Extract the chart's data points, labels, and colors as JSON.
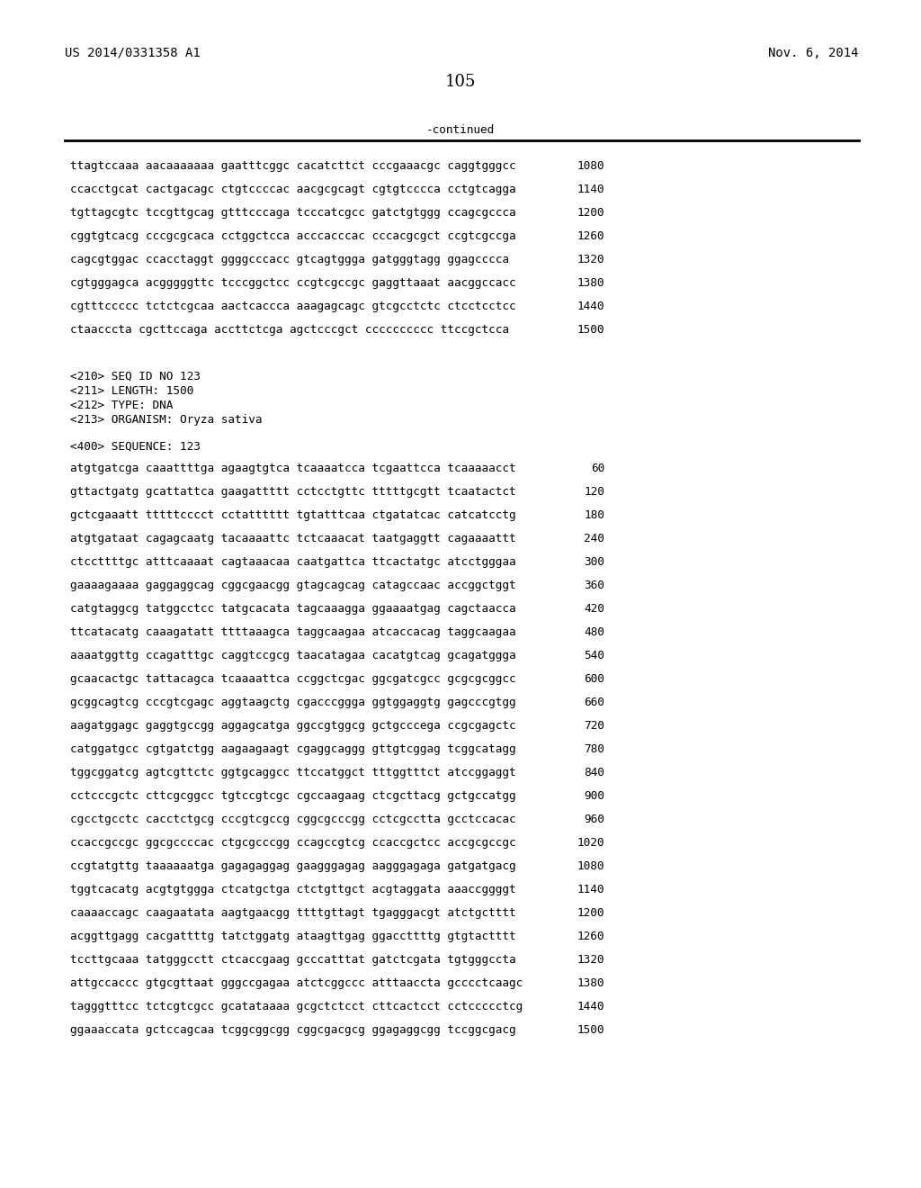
{
  "header_left": "US 2014/0331358 A1",
  "header_right": "Nov. 6, 2014",
  "page_number": "105",
  "continued_text": "-continued",
  "background_color": "#ffffff",
  "text_color": "#000000",
  "font_size_header": 10.0,
  "font_size_body": 9.2,
  "font_size_page": 13,
  "sequence_lines_top": [
    [
      "ttagtccaaa aacaaaaaaa gaatttcggc cacatcttct cccgaaacgc caggtgggcc",
      "1080"
    ],
    [
      "ccacctgcat cactgacagc ctgtccccac aacgcgcagt cgtgtcccca cctgtcagga",
      "1140"
    ],
    [
      "tgttagcgtc tccgttgcag gtttcccaga tcccatcgcc gatctgtggg ccagcgccca",
      "1200"
    ],
    [
      "cggtgtcacg cccgcgcaca cctggctcca acccacccac cccacgcgct ccgtcgccga",
      "1260"
    ],
    [
      "cagcgtggac ccacctaggt ggggcccacc gtcagtggga gatgggtagg ggagcccca",
      "1320"
    ],
    [
      "cgtgggagca acgggggttc tcccggctcc ccgtcgccgc gaggttaaat aacggccacc",
      "1380"
    ],
    [
      "cgtttccccc tctctcgcaa aactcaccca aaagagcagc gtcgcctctc ctcctcctcc",
      "1440"
    ],
    [
      "ctaacccta cgcttccaga accttctcga agctcccgct cccccccccc ttccgctcca",
      "1500"
    ]
  ],
  "metadata_lines": [
    "<210> SEQ ID NO 123",
    "<211> LENGTH: 1500",
    "<212> TYPE: DNA",
    "<213> ORGANISM: Oryza sativa"
  ],
  "sequence_label": "<400> SEQUENCE: 123",
  "sequence_lines_bottom": [
    [
      "atgtgatcga caaattttga agaagtgtca tcaaaatcca tcgaattcca tcaaaaacct",
      "60"
    ],
    [
      "gttactgatg gcattattca gaagattttt cctcctgttc tttttgcgtt tcaatactct",
      "120"
    ],
    [
      "gctcgaaatt tttttcccct cctatttttt tgtatttcaa ctgatatcac catcatcctg",
      "180"
    ],
    [
      "atgtgataat cagagcaatg tacaaaattc tctcaaacat taatgaggtt cagaaaattt",
      "240"
    ],
    [
      "ctccttttgc atttcaaaat cagtaaacaa caatgattca ttcactatgc atcctgggaa",
      "300"
    ],
    [
      "gaaaagaaaa gaggaggcag cggcgaacgg gtagcagcag catagccaac accggctggt",
      "360"
    ],
    [
      "catgtaggcg tatggcctcc tatgcacata tagcaaagga ggaaaatgag cagctaacca",
      "420"
    ],
    [
      "ttcatacatg caaagatatt ttttaaagca taggcaagaa atcaccacag taggcaagaa",
      "480"
    ],
    [
      "aaaatggttg ccagatttgc caggtccgcg taacatagaa cacatgtcag gcagatggga",
      "540"
    ],
    [
      "gcaacactgc tattacagca tcaaaattca ccggctcgac ggcgatcgcc gcgcgcggcc",
      "600"
    ],
    [
      "gcggcagtcg cccgtcgagc aggtaagctg cgacccggga ggtggaggtg gagcccgtgg",
      "660"
    ],
    [
      "aagatggagc gaggtgccgg aggagcatga ggccgtggcg gctgcccega ccgcgagctc",
      "720"
    ],
    [
      "catggatgcc cgtgatctgg aagaagaagt cgaggcaggg gttgtcggag tcggcatagg",
      "780"
    ],
    [
      "tggcggatcg agtcgttctc ggtgcaggcc ttccatggct tttggtttct atccggaggt",
      "840"
    ],
    [
      "cctcccgctc cttcgcggcc tgtccgtcgc cgccaagaag ctcgcttacg gctgccatgg",
      "900"
    ],
    [
      "cgcctgcctc cacctctgcg cccgtcgccg cggcgcccgg cctcgcctta gcctccacac",
      "960"
    ],
    [
      "ccaccgccgc ggcgccccac ctgcgcccgg ccagccgtcg ccaccgctcc accgcgccgc",
      "1020"
    ],
    [
      "ccgtatgttg taaaaaatga gagagaggag gaagggagag aagggagaga gatgatgacg",
      "1080"
    ],
    [
      "tggtcacatg acgtgtggga ctcatgctga ctctgttgct acgtaggata aaaccggggt",
      "1140"
    ],
    [
      "caaaaccagc caagaatata aagtgaacgg ttttgttagt tgagggacgt atctgctttt",
      "1200"
    ],
    [
      "acggttgagg cacgattttg tatctggatg ataagttgag ggaccttttg gtgtactttt",
      "1260"
    ],
    [
      "tccttgcaaa tatgggcctt ctcaccgaag gcccatttat gatctcgata tgtgggccta",
      "1320"
    ],
    [
      "attgccaccc gtgcgttaat gggccgagaa atctcggccc atttaaccta gcccctcaagc",
      "1380"
    ],
    [
      "tagggtttcc tctcgtcgcc gcatataaaa gcgctctcct cttcactcct cctccccctcg",
      "1440"
    ],
    [
      "ggaaaccata gctccagcaa tcggcggcgg cggcgacgcg ggagaggcgg tccggcgacg",
      "1500"
    ]
  ]
}
